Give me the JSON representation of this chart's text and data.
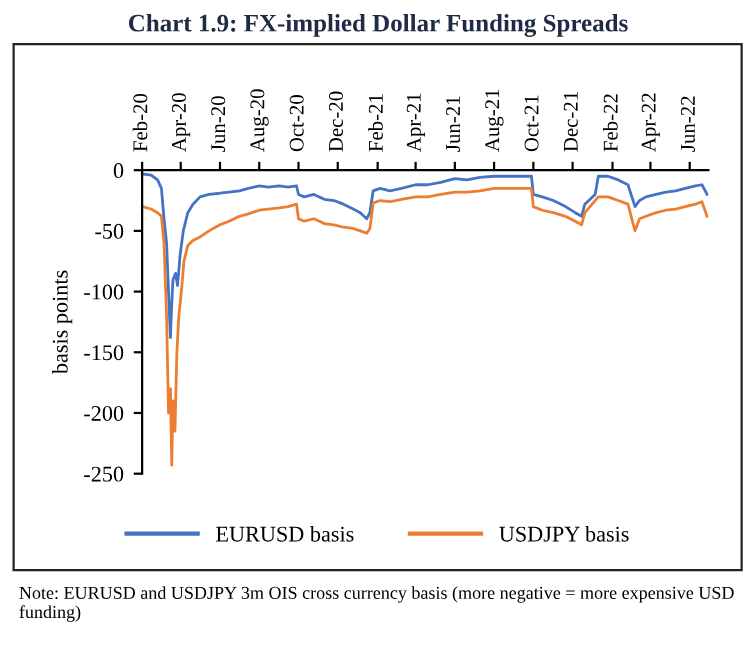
{
  "chart_data": {
    "type": "line",
    "title": "Chart 1.9: FX-implied Dollar Funding Spreads",
    "ylabel": "basis points",
    "annotations": [
      "Note: EURUSD and USDJPY 3m OIS cross currency basis (more negative = more expensive USD funding)"
    ],
    "xlim": [
      "2020-02-01",
      "2022-06-30"
    ],
    "ylim": [
      -250,
      0
    ],
    "xticks": [
      {
        "value": "2020-02-01",
        "label": "Feb-20"
      },
      {
        "value": "2020-04-01",
        "label": "Apr-20"
      },
      {
        "value": "2020-06-01",
        "label": "Jun-20"
      },
      {
        "value": "2020-08-01",
        "label": "Aug-20"
      },
      {
        "value": "2020-10-01",
        "label": "Oct-20"
      },
      {
        "value": "2020-12-01",
        "label": "Dec-20"
      },
      {
        "value": "2021-02-01",
        "label": "Feb-21"
      },
      {
        "value": "2021-04-01",
        "label": "Apr-21"
      },
      {
        "value": "2021-06-01",
        "label": "Jun-21"
      },
      {
        "value": "2021-08-01",
        "label": "Aug-21"
      },
      {
        "value": "2021-10-01",
        "label": "Oct-21"
      },
      {
        "value": "2021-12-01",
        "label": "Dec-21"
      },
      {
        "value": "2022-02-01",
        "label": "Feb-22"
      },
      {
        "value": "2022-04-01",
        "label": "Apr-22"
      },
      {
        "value": "2022-06-01",
        "label": "Jun-22"
      }
    ],
    "yticks": [
      0,
      -50,
      -100,
      -150,
      -200,
      -250
    ],
    "grid": false,
    "legend": "bottom",
    "marker": "none",
    "line_style": "solid",
    "series": [
      {
        "name": "EURUSD basis",
        "color": "#4472c4",
        "x": [
          "2020-02-01",
          "2020-02-15",
          "2020-02-25",
          "2020-03-02",
          "2020-03-06",
          "2020-03-10",
          "2020-03-13",
          "2020-03-16",
          "2020-03-18",
          "2020-03-20",
          "2020-03-24",
          "2020-03-27",
          "2020-03-31",
          "2020-04-05",
          "2020-04-12",
          "2020-04-20",
          "2020-05-01",
          "2020-05-15",
          "2020-06-01",
          "2020-06-15",
          "2020-07-01",
          "2020-07-15",
          "2020-08-01",
          "2020-08-15",
          "2020-09-01",
          "2020-09-15",
          "2020-09-28",
          "2020-10-01",
          "2020-10-10",
          "2020-10-25",
          "2020-11-10",
          "2020-11-25",
          "2020-12-10",
          "2020-12-25",
          "2021-01-05",
          "2021-01-15",
          "2021-01-20",
          "2021-01-25",
          "2021-02-05",
          "2021-02-20",
          "2021-03-10",
          "2021-04-01",
          "2021-04-20",
          "2021-05-10",
          "2021-06-01",
          "2021-06-20",
          "2021-07-10",
          "2021-08-01",
          "2021-08-20",
          "2021-09-10",
          "2021-09-28",
          "2021-10-01",
          "2021-10-15",
          "2021-11-01",
          "2021-11-20",
          "2021-12-05",
          "2021-12-15",
          "2021-12-20",
          "2022-01-05",
          "2022-01-10",
          "2022-01-25",
          "2022-02-10",
          "2022-02-25",
          "2022-03-08",
          "2022-03-15",
          "2022-03-25",
          "2022-04-10",
          "2022-04-25",
          "2022-05-10",
          "2022-05-25",
          "2022-06-10",
          "2022-06-20",
          "2022-06-28"
        ],
        "values": [
          -3,
          -4,
          -8,
          -15,
          -40,
          -60,
          -100,
          -138,
          -110,
          -90,
          -85,
          -95,
          -70,
          -50,
          -35,
          -28,
          -22,
          -20,
          -19,
          -18,
          -17,
          -15,
          -13,
          -14,
          -13,
          -14,
          -13,
          -20,
          -22,
          -20,
          -24,
          -25,
          -28,
          -32,
          -35,
          -40,
          -35,
          -17,
          -15,
          -17,
          -15,
          -12,
          -12,
          -10,
          -7,
          -8,
          -6,
          -5,
          -5,
          -5,
          -5,
          -20,
          -22,
          -25,
          -30,
          -35,
          -38,
          -28,
          -20,
          -5,
          -5,
          -8,
          -12,
          -30,
          -25,
          -22,
          -20,
          -18,
          -17,
          -15,
          -13,
          -12,
          -20
        ]
      },
      {
        "name": "USDJPY basis",
        "color": "#ed7d31",
        "x": [
          "2020-02-01",
          "2020-02-15",
          "2020-02-25",
          "2020-03-02",
          "2020-03-06",
          "2020-03-10",
          "2020-03-13",
          "2020-03-16",
          "2020-03-18",
          "2020-03-20",
          "2020-03-23",
          "2020-03-26",
          "2020-03-29",
          "2020-04-02",
          "2020-04-06",
          "2020-04-12",
          "2020-04-20",
          "2020-05-01",
          "2020-05-15",
          "2020-06-01",
          "2020-06-15",
          "2020-07-01",
          "2020-07-15",
          "2020-08-01",
          "2020-08-15",
          "2020-09-01",
          "2020-09-15",
          "2020-09-28",
          "2020-10-01",
          "2020-10-10",
          "2020-10-25",
          "2020-11-10",
          "2020-11-25",
          "2020-12-10",
          "2020-12-25",
          "2021-01-05",
          "2021-01-15",
          "2021-01-20",
          "2021-01-25",
          "2021-02-05",
          "2021-02-20",
          "2021-03-10",
          "2021-04-01",
          "2021-04-20",
          "2021-05-10",
          "2021-06-01",
          "2021-06-20",
          "2021-07-10",
          "2021-08-01",
          "2021-08-20",
          "2021-09-10",
          "2021-09-28",
          "2021-10-01",
          "2021-10-15",
          "2021-11-01",
          "2021-11-20",
          "2021-12-05",
          "2021-12-15",
          "2021-12-20",
          "2022-01-05",
          "2022-01-10",
          "2022-01-25",
          "2022-02-10",
          "2022-02-25",
          "2022-03-08",
          "2022-03-15",
          "2022-03-25",
          "2022-04-10",
          "2022-04-25",
          "2022-05-10",
          "2022-05-25",
          "2022-06-10",
          "2022-06-20",
          "2022-06-28"
        ],
        "values": [
          -30,
          -32,
          -35,
          -38,
          -60,
          -120,
          -200,
          -180,
          -243,
          -190,
          -215,
          -150,
          -120,
          -100,
          -75,
          -62,
          -58,
          -55,
          -50,
          -45,
          -42,
          -38,
          -36,
          -33,
          -32,
          -31,
          -30,
          -28,
          -40,
          -42,
          -40,
          -44,
          -45,
          -47,
          -48,
          -50,
          -52,
          -48,
          -27,
          -25,
          -26,
          -24,
          -22,
          -22,
          -20,
          -18,
          -18,
          -17,
          -15,
          -15,
          -15,
          -15,
          -30,
          -33,
          -35,
          -38,
          -42,
          -45,
          -35,
          -25,
          -22,
          -22,
          -25,
          -28,
          -50,
          -40,
          -38,
          -35,
          -33,
          -32,
          -30,
          -28,
          -26,
          -38
        ]
      }
    ]
  }
}
